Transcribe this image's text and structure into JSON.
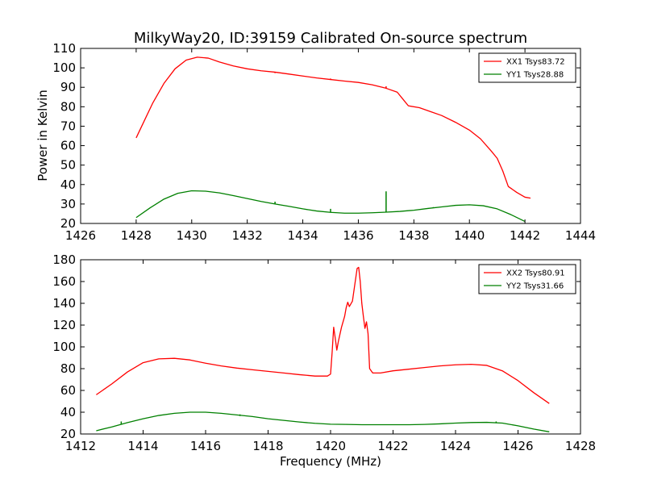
{
  "figure": {
    "title": "MilkyWay20, ID:39159 Calibrated On-source spectrum",
    "xlabel": "Frequency (MHz)",
    "ylabel_top": "Power in Kelvin"
  },
  "chart_data": [
    {
      "type": "line",
      "title": "MilkyWay20, ID:39159 Calibrated On-source spectrum",
      "xlabel": "",
      "ylabel": "Power in Kelvin",
      "xlim": [
        1426,
        1444
      ],
      "ylim": [
        20,
        110
      ],
      "xticks": [
        1426,
        1428,
        1430,
        1432,
        1434,
        1436,
        1438,
        1440,
        1442,
        1444
      ],
      "yticks": [
        20,
        30,
        40,
        50,
        60,
        70,
        80,
        90,
        100,
        110
      ],
      "grid": false,
      "legend_position": "top-right",
      "series": [
        {
          "name": "XX1 Tsys83.72",
          "color": "#ff0000",
          "points": [
            [
              1428,
              64
            ],
            [
              1428.3,
              73
            ],
            [
              1428.6,
              82
            ],
            [
              1429,
              92
            ],
            [
              1429.4,
              99.5
            ],
            [
              1429.8,
              104
            ],
            [
              1430.2,
              105.5
            ],
            [
              1430.6,
              105
            ],
            [
              1431,
              103
            ],
            [
              1431.5,
              101
            ],
            [
              1432,
              99.5
            ],
            [
              1432.5,
              98.5
            ],
            [
              1433,
              97.8
            ],
            [
              1433.5,
              96.8
            ],
            [
              1434,
              95.8
            ],
            [
              1434.5,
              94.8
            ],
            [
              1435,
              94
            ],
            [
              1435.5,
              93.2
            ],
            [
              1436,
              92.5
            ],
            [
              1436.5,
              91.3
            ],
            [
              1437,
              89.5
            ],
            [
              1437.4,
              87.5
            ],
            [
              1437.6,
              84
            ],
            [
              1437.8,
              80.5
            ],
            [
              1438.2,
              79.5
            ],
            [
              1438.6,
              77.5
            ],
            [
              1439,
              75.5
            ],
            [
              1439.5,
              72
            ],
            [
              1440,
              68
            ],
            [
              1440.4,
              63.5
            ],
            [
              1440.8,
              57
            ],
            [
              1441,
              53.5
            ],
            [
              1441.2,
              47
            ],
            [
              1441.4,
              39
            ],
            [
              1441.7,
              36
            ],
            [
              1442,
              33.5
            ],
            [
              1442.2,
              33
            ]
          ],
          "spikes": [
            [
              1433,
              97.8,
              97.3
            ],
            [
              1435,
              93.8,
              94.5
            ],
            [
              1437,
              89.5,
              90.5
            ]
          ]
        },
        {
          "name": "YY1 Tsys28.88",
          "color": "#008000",
          "points": [
            [
              1428,
              23
            ],
            [
              1428.5,
              28
            ],
            [
              1429,
              32.5
            ],
            [
              1429.5,
              35.5
            ],
            [
              1430,
              36.8
            ],
            [
              1430.5,
              36.6
            ],
            [
              1431,
              35.7
            ],
            [
              1431.5,
              34.3
            ],
            [
              1432,
              32.8
            ],
            [
              1432.5,
              31.3
            ],
            [
              1433,
              30
            ],
            [
              1433.5,
              28.8
            ],
            [
              1434,
              27.5
            ],
            [
              1434.5,
              26.4
            ],
            [
              1435,
              25.7
            ],
            [
              1435.5,
              25.3
            ],
            [
              1436,
              25.3
            ],
            [
              1436.5,
              25.5
            ],
            [
              1437,
              25.8
            ],
            [
              1437.5,
              26.2
            ],
            [
              1438,
              26.8
            ],
            [
              1438.5,
              27.7
            ],
            [
              1439,
              28.5
            ],
            [
              1439.5,
              29.3
            ],
            [
              1440,
              29.6
            ],
            [
              1440.5,
              29.1
            ],
            [
              1441,
              27.5
            ],
            [
              1441.5,
              24.5
            ],
            [
              1442,
              21
            ]
          ],
          "spikes": [
            [
              1433,
              30,
              31.2
            ],
            [
              1435,
              25.7,
              27.5
            ],
            [
              1437,
              25.8,
              36.5
            ],
            [
              1438.7,
              28,
              28.4
            ]
          ]
        }
      ]
    },
    {
      "type": "line",
      "title": "",
      "xlabel": "Frequency (MHz)",
      "ylabel": "",
      "xlim": [
        1412,
        1428
      ],
      "ylim": [
        20,
        180
      ],
      "xticks": [
        1412,
        1414,
        1416,
        1418,
        1420,
        1422,
        1424,
        1426,
        1428
      ],
      "yticks": [
        20,
        40,
        60,
        80,
        100,
        120,
        140,
        160,
        180
      ],
      "grid": false,
      "legend_position": "top-right",
      "series": [
        {
          "name": "XX2 Tsys80.91",
          "color": "#ff0000",
          "points": [
            [
              1412.5,
              56
            ],
            [
              1413,
              66
            ],
            [
              1413.5,
              77
            ],
            [
              1414,
              85.5
            ],
            [
              1414.5,
              89
            ],
            [
              1415,
              89.5
            ],
            [
              1415.5,
              88
            ],
            [
              1416,
              85
            ],
            [
              1416.5,
              82.5
            ],
            [
              1417,
              80.5
            ],
            [
              1417.5,
              79
            ],
            [
              1418,
              77.5
            ],
            [
              1418.5,
              76
            ],
            [
              1419,
              74.5
            ],
            [
              1419.5,
              73.2
            ],
            [
              1419.9,
              73.2
            ],
            [
              1420,
              75
            ],
            [
              1420.05,
              95
            ],
            [
              1420.1,
              118
            ],
            [
              1420.15,
              108
            ],
            [
              1420.2,
              97
            ],
            [
              1420.25,
              105
            ],
            [
              1420.35,
              118
            ],
            [
              1420.45,
              128
            ],
            [
              1420.5,
              136
            ],
            [
              1420.55,
              141
            ],
            [
              1420.6,
              137
            ],
            [
              1420.7,
              142
            ],
            [
              1420.78,
              158
            ],
            [
              1420.85,
              172
            ],
            [
              1420.9,
              173
            ],
            [
              1420.95,
              160
            ],
            [
              1421.0,
              140
            ],
            [
              1421.05,
              128
            ],
            [
              1421.1,
              117
            ],
            [
              1421.15,
              123
            ],
            [
              1421.2,
              112
            ],
            [
              1421.25,
              80
            ],
            [
              1421.35,
              76
            ],
            [
              1421.6,
              76
            ],
            [
              1422,
              78
            ],
            [
              1422.5,
              79.5
            ],
            [
              1423,
              81
            ],
            [
              1423.5,
              82.5
            ],
            [
              1424,
              83.5
            ],
            [
              1424.5,
              84
            ],
            [
              1425,
              83
            ],
            [
              1425.5,
              78
            ],
            [
              1426,
              69
            ],
            [
              1426.5,
              58
            ],
            [
              1427,
              48
            ]
          ]
        },
        {
          "name": "YY2 Tsys31.66",
          "color": "#008000",
          "points": [
            [
              1412.5,
              23
            ],
            [
              1413,
              26.5
            ],
            [
              1413.5,
              30.5
            ],
            [
              1414,
              34
            ],
            [
              1414.5,
              37
            ],
            [
              1415,
              39
            ],
            [
              1415.5,
              40
            ],
            [
              1416,
              40
            ],
            [
              1416.5,
              39
            ],
            [
              1417,
              37.5
            ],
            [
              1417.5,
              36
            ],
            [
              1418,
              34
            ],
            [
              1418.5,
              32.5
            ],
            [
              1419,
              31
            ],
            [
              1419.5,
              29.8
            ],
            [
              1420,
              29
            ],
            [
              1420.5,
              28.8
            ],
            [
              1421,
              28.5
            ],
            [
              1421.5,
              28.5
            ],
            [
              1422,
              28.5
            ],
            [
              1422.5,
              28.5
            ],
            [
              1423,
              28.8
            ],
            [
              1423.5,
              29.3
            ],
            [
              1424,
              30
            ],
            [
              1424.5,
              30.5
            ],
            [
              1425,
              30.7
            ],
            [
              1425.5,
              30
            ],
            [
              1426,
              27.5
            ],
            [
              1426.5,
              24.5
            ],
            [
              1427,
              22
            ]
          ],
          "spikes": [
            [
              1413.3,
              29,
              31.5
            ],
            [
              1417.1,
              36.5,
              38
            ],
            [
              1425.3,
              30.5,
              31.5
            ]
          ]
        }
      ]
    }
  ]
}
